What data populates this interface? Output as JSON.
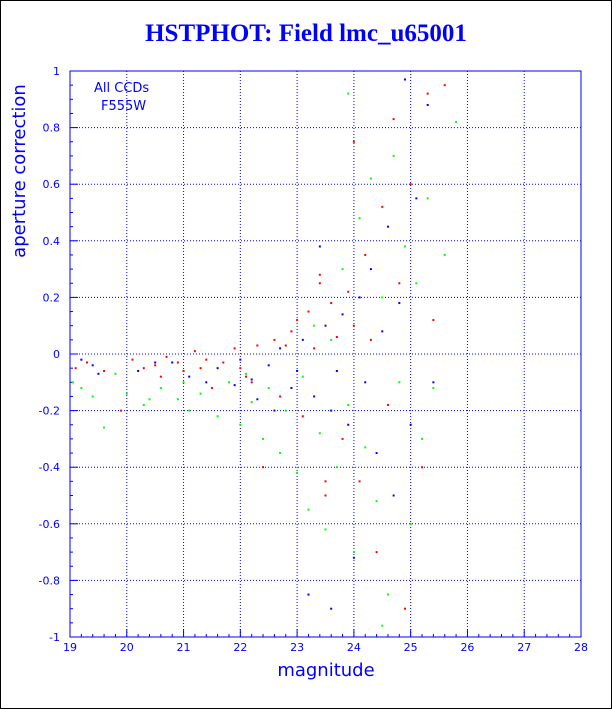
{
  "title": "HSTPHOT: Field lmc_u65001",
  "chart_data": {
    "type": "scatter",
    "title": "HSTPHOT: Field lmc_u65001",
    "xlabel": "magnitude",
    "ylabel": "aperture correction",
    "xlim": [
      19,
      28
    ],
    "ylim": [
      -1,
      1
    ],
    "x_ticks": [
      "19",
      "20",
      "21",
      "22",
      "23",
      "24",
      "25",
      "26",
      "27",
      "28"
    ],
    "y_ticks": [
      "-1",
      "-0.8",
      "-0.6",
      "-0.4",
      "-0.2",
      "0",
      "0.2",
      "0.4",
      "0.6",
      "0.8",
      "1"
    ],
    "grid": true,
    "annotation": [
      "All CCDs",
      "F555W"
    ],
    "colors": {
      "axis": "#0000ff",
      "grid": "#0000ff",
      "title": "#0000ff"
    },
    "series": [
      {
        "color": "#ff0000",
        "points": [
          [
            19.1,
            -0.05
          ],
          [
            19.3,
            -0.03
          ],
          [
            19.6,
            -0.06
          ],
          [
            19.9,
            -0.2
          ],
          [
            20.1,
            -0.02
          ],
          [
            20.3,
            -0.05
          ],
          [
            20.5,
            -0.04
          ],
          [
            20.7,
            -0.01
          ],
          [
            20.9,
            -0.03
          ],
          [
            21.0,
            -0.06
          ],
          [
            21.2,
            0.01
          ],
          [
            21.4,
            -0.02
          ],
          [
            21.5,
            -0.12
          ],
          [
            21.7,
            -0.03
          ],
          [
            21.9,
            0.02
          ],
          [
            22.0,
            -0.05
          ],
          [
            22.1,
            -0.08
          ],
          [
            22.3,
            0.03
          ],
          [
            22.4,
            -0.4
          ],
          [
            22.6,
            0.05
          ],
          [
            22.7,
            -0.15
          ],
          [
            22.9,
            0.08
          ],
          [
            23.0,
            0.12
          ],
          [
            23.1,
            -0.22
          ],
          [
            23.2,
            0.15
          ],
          [
            23.3,
            0.02
          ],
          [
            23.4,
            0.28
          ],
          [
            23.5,
            -0.5
          ],
          [
            23.6,
            0.18
          ],
          [
            23.7,
            0.06
          ],
          [
            23.8,
            -0.3
          ],
          [
            23.9,
            0.22
          ],
          [
            24.0,
            0.1
          ],
          [
            24.1,
            -0.45
          ],
          [
            24.2,
            0.35
          ],
          [
            24.3,
            0.05
          ],
          [
            24.4,
            -0.7
          ],
          [
            24.5,
            0.52
          ],
          [
            24.6,
            -0.18
          ],
          [
            24.7,
            0.83
          ],
          [
            24.8,
            0.25
          ],
          [
            24.9,
            -0.9
          ],
          [
            25.0,
            0.6
          ],
          [
            25.2,
            -0.4
          ],
          [
            25.3,
            0.92
          ],
          [
            25.4,
            0.12
          ],
          [
            25.6,
            0.95
          ],
          [
            23.4,
            0.25
          ],
          [
            22.8,
            0.03
          ],
          [
            24.0,
            0.75
          ],
          [
            23.5,
            -0.45
          ],
          [
            22.2,
            -0.1
          ],
          [
            21.3,
            -0.05
          ],
          [
            20.6,
            -0.08
          ]
        ]
      },
      {
        "color": "#0000ff",
        "points": [
          [
            19.2,
            -0.02
          ],
          [
            19.4,
            -0.04
          ],
          [
            19.5,
            -0.07
          ],
          [
            20.2,
            -0.06
          ],
          [
            20.8,
            -0.03
          ],
          [
            21.1,
            -0.08
          ],
          [
            21.6,
            -0.05
          ],
          [
            22.0,
            -0.02
          ],
          [
            22.2,
            -0.09
          ],
          [
            22.5,
            -0.04
          ],
          [
            22.7,
            0.02
          ],
          [
            22.9,
            -0.12
          ],
          [
            23.0,
            -0.06
          ],
          [
            23.1,
            0.05
          ],
          [
            23.3,
            -0.15
          ],
          [
            23.5,
            0.1
          ],
          [
            23.6,
            -0.2
          ],
          [
            23.8,
            0.14
          ],
          [
            23.9,
            -0.25
          ],
          [
            24.1,
            0.2
          ],
          [
            24.2,
            -0.1
          ],
          [
            24.3,
            0.3
          ],
          [
            24.4,
            -0.35
          ],
          [
            24.5,
            0.08
          ],
          [
            24.6,
            0.45
          ],
          [
            24.7,
            -0.5
          ],
          [
            24.8,
            0.18
          ],
          [
            25.0,
            -0.25
          ],
          [
            25.1,
            0.55
          ],
          [
            25.3,
            0.88
          ],
          [
            25.4,
            -0.1
          ],
          [
            23.2,
            -0.85
          ],
          [
            23.6,
            -0.9
          ],
          [
            24.0,
            -0.72
          ],
          [
            22.3,
            -0.16
          ],
          [
            21.9,
            -0.11
          ],
          [
            20.5,
            -0.03
          ],
          [
            23.4,
            0.38
          ],
          [
            23.7,
            -0.06
          ],
          [
            24.9,
            0.97
          ],
          [
            22.6,
            -0.2
          ],
          [
            21.4,
            -0.1
          ]
        ]
      },
      {
        "color": "#00ff00",
        "points": [
          [
            19.05,
            -0.1
          ],
          [
            19.2,
            -0.12
          ],
          [
            19.4,
            -0.15
          ],
          [
            19.6,
            -0.26
          ],
          [
            19.8,
            -0.07
          ],
          [
            20.0,
            -0.14
          ],
          [
            20.3,
            -0.18
          ],
          [
            20.6,
            -0.12
          ],
          [
            20.9,
            -0.16
          ],
          [
            21.1,
            -0.2
          ],
          [
            21.3,
            -0.14
          ],
          [
            21.6,
            -0.22
          ],
          [
            21.8,
            -0.1
          ],
          [
            22.0,
            -0.25
          ],
          [
            22.2,
            -0.17
          ],
          [
            22.4,
            -0.3
          ],
          [
            22.5,
            -0.12
          ],
          [
            22.7,
            -0.35
          ],
          [
            22.8,
            -0.2
          ],
          [
            23.0,
            -0.42
          ],
          [
            23.1,
            -0.08
          ],
          [
            23.2,
            -0.55
          ],
          [
            23.3,
            0.1
          ],
          [
            23.4,
            -0.28
          ],
          [
            23.5,
            -0.62
          ],
          [
            23.6,
            0.05
          ],
          [
            23.7,
            -0.4
          ],
          [
            23.8,
            0.3
          ],
          [
            23.9,
            -0.18
          ],
          [
            24.0,
            -0.7
          ],
          [
            24.1,
            0.48
          ],
          [
            24.2,
            -0.33
          ],
          [
            24.3,
            0.62
          ],
          [
            24.4,
            -0.52
          ],
          [
            24.5,
            0.2
          ],
          [
            24.6,
            -0.85
          ],
          [
            24.7,
            0.7
          ],
          [
            24.8,
            -0.1
          ],
          [
            24.9,
            0.38
          ],
          [
            25.0,
            -0.6
          ],
          [
            25.1,
            0.25
          ],
          [
            25.2,
            -0.3
          ],
          [
            25.3,
            0.55
          ],
          [
            25.4,
            -0.12
          ],
          [
            25.6,
            0.35
          ],
          [
            25.8,
            0.82
          ],
          [
            23.9,
            0.92
          ],
          [
            24.5,
            -0.96
          ],
          [
            22.1,
            -0.07
          ],
          [
            21.0,
            -0.1
          ],
          [
            20.4,
            -0.16
          ]
        ]
      }
    ]
  }
}
